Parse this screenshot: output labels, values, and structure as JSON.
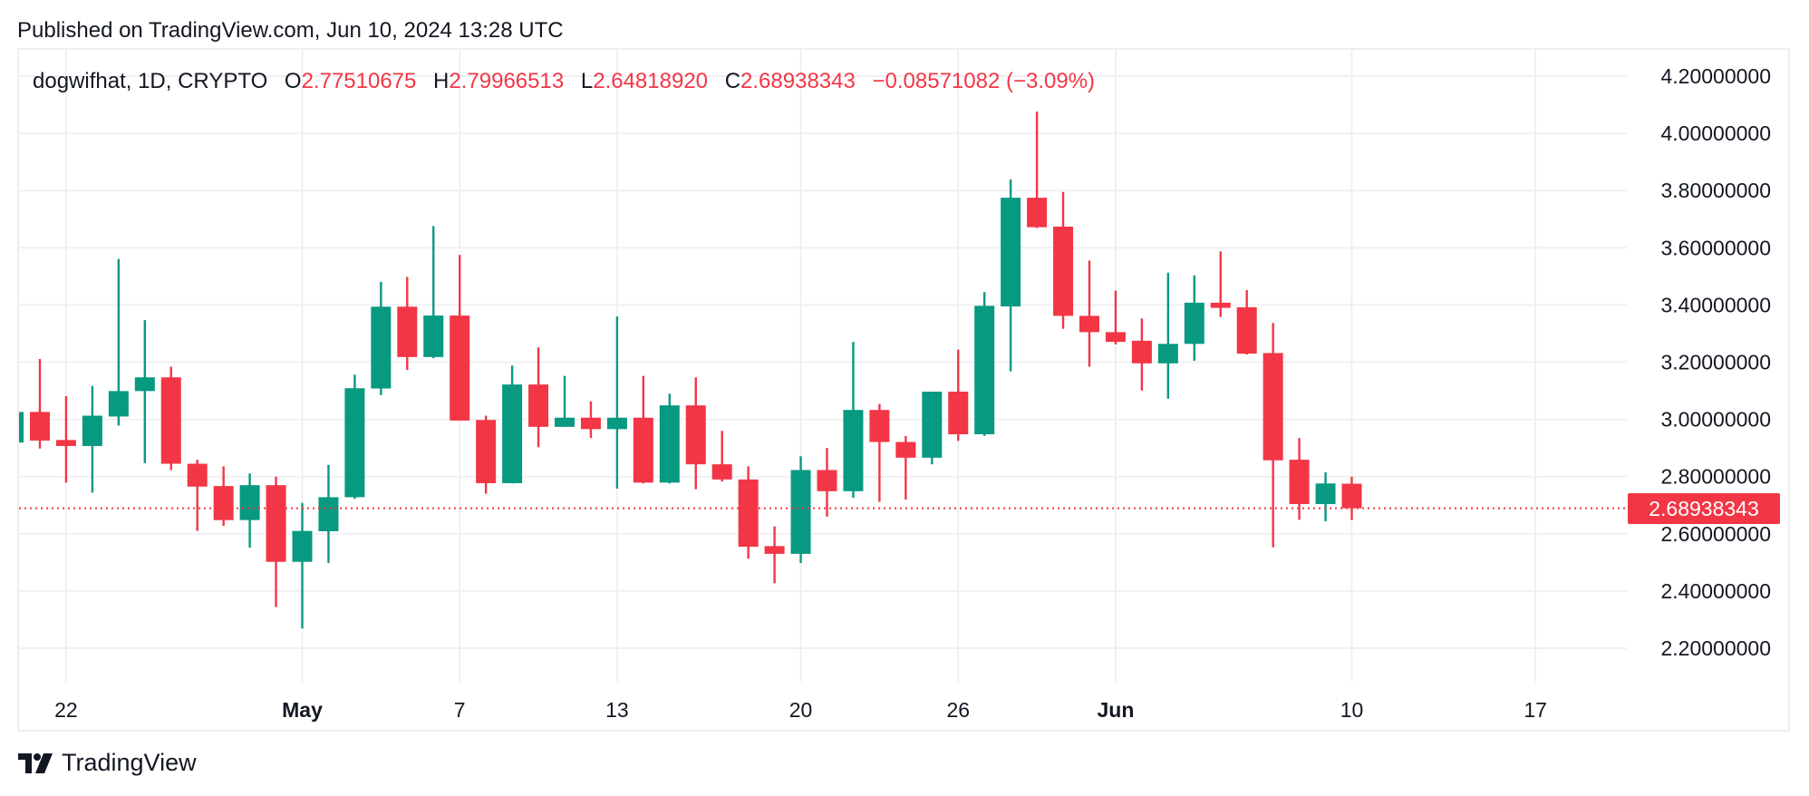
{
  "header": {
    "published": "Published on TradingView.com, Jun 10, 2024 13:28 UTC"
  },
  "legend": {
    "symbol": "dogwifhat, 1D, CRYPTO",
    "open_label": "O",
    "open": "2.77510675",
    "high_label": "H",
    "high": "2.79966513",
    "low_label": "L",
    "low": "2.64818920",
    "close_label": "C",
    "close": "2.68938343",
    "change": "−0.08571082 (−3.09%)"
  },
  "footer": {
    "brand": "TradingView",
    "logo_icon": "tradingview-logo-icon"
  },
  "colors": {
    "up": "#089981",
    "down": "#F23645",
    "grid": "#f0f0f3",
    "text": "#131722"
  },
  "chart_data": {
    "type": "candlestick",
    "interval": "1D",
    "last_price": 2.68938343,
    "last_price_label": "2.68938343",
    "ylim": [
      2.1,
      4.3
    ],
    "grid": true,
    "y_ticks": [
      {
        "value": 4.2,
        "label": "4.20000000"
      },
      {
        "value": 4.0,
        "label": "4.00000000"
      },
      {
        "value": 3.8,
        "label": "3.80000000"
      },
      {
        "value": 3.6,
        "label": "3.60000000"
      },
      {
        "value": 3.4,
        "label": "3.40000000"
      },
      {
        "value": 3.2,
        "label": "3.20000000"
      },
      {
        "value": 3.0,
        "label": "3.00000000"
      },
      {
        "value": 2.8,
        "label": "2.80000000"
      },
      {
        "value": 2.6,
        "label": "2.60000000"
      },
      {
        "value": 2.4,
        "label": "2.40000000"
      },
      {
        "value": 2.2,
        "label": "2.20000000"
      }
    ],
    "x_ticks": [
      {
        "date": "2024-04-22",
        "label": "22",
        "bold": false
      },
      {
        "date": "2024-05-01",
        "label": "May",
        "bold": true
      },
      {
        "date": "2024-05-07",
        "label": "7",
        "bold": false
      },
      {
        "date": "2024-05-13",
        "label": "13",
        "bold": false
      },
      {
        "date": "2024-05-20",
        "label": "20",
        "bold": false
      },
      {
        "date": "2024-05-26",
        "label": "26",
        "bold": false
      },
      {
        "date": "2024-06-01",
        "label": "Jun",
        "bold": true
      },
      {
        "date": "2024-06-10",
        "label": "10",
        "bold": false
      },
      {
        "date": "2024-06-17",
        "label": "17",
        "bold": false
      }
    ],
    "candles": [
      {
        "date": "2024-04-20",
        "o": 2.919,
        "h": 3.026,
        "l": 2.919,
        "c": 3.026
      },
      {
        "date": "2024-04-21",
        "o": 3.026,
        "h": 3.211,
        "l": 2.898,
        "c": 2.926
      },
      {
        "date": "2024-04-22",
        "o": 2.928,
        "h": 3.081,
        "l": 2.779,
        "c": 2.907
      },
      {
        "date": "2024-04-23",
        "o": 2.907,
        "h": 3.117,
        "l": 2.744,
        "c": 3.013
      },
      {
        "date": "2024-04-24",
        "o": 3.01,
        "h": 3.561,
        "l": 2.978,
        "c": 3.099
      },
      {
        "date": "2024-04-25",
        "o": 3.099,
        "h": 3.347,
        "l": 2.847,
        "c": 3.147
      },
      {
        "date": "2024-04-26",
        "o": 3.147,
        "h": 3.184,
        "l": 2.823,
        "c": 2.845
      },
      {
        "date": "2024-04-27",
        "o": 2.845,
        "h": 2.859,
        "l": 2.61,
        "c": 2.765
      },
      {
        "date": "2024-04-28",
        "o": 2.767,
        "h": 2.836,
        "l": 2.628,
        "c": 2.648
      },
      {
        "date": "2024-04-29",
        "o": 2.648,
        "h": 2.811,
        "l": 2.552,
        "c": 2.77
      },
      {
        "date": "2024-04-30",
        "o": 2.77,
        "h": 2.8,
        "l": 2.344,
        "c": 2.502
      },
      {
        "date": "2024-05-01",
        "o": 2.502,
        "h": 2.708,
        "l": 2.269,
        "c": 2.61
      },
      {
        "date": "2024-05-02",
        "o": 2.609,
        "h": 2.841,
        "l": 2.498,
        "c": 2.728
      },
      {
        "date": "2024-05-03",
        "o": 2.728,
        "h": 3.156,
        "l": 2.722,
        "c": 3.109
      },
      {
        "date": "2024-05-04",
        "o": 3.108,
        "h": 3.481,
        "l": 3.085,
        "c": 3.394
      },
      {
        "date": "2024-05-05",
        "o": 3.394,
        "h": 3.498,
        "l": 3.173,
        "c": 3.218
      },
      {
        "date": "2024-05-06",
        "o": 3.218,
        "h": 3.676,
        "l": 3.214,
        "c": 3.363
      },
      {
        "date": "2024-05-07",
        "o": 3.363,
        "h": 3.575,
        "l": 2.996,
        "c": 2.996
      },
      {
        "date": "2024-05-08",
        "o": 2.998,
        "h": 3.013,
        "l": 2.74,
        "c": 2.777
      },
      {
        "date": "2024-05-09",
        "o": 2.777,
        "h": 3.188,
        "l": 2.776,
        "c": 3.122
      },
      {
        "date": "2024-05-10",
        "o": 3.122,
        "h": 3.252,
        "l": 2.903,
        "c": 2.974
      },
      {
        "date": "2024-05-11",
        "o": 2.974,
        "h": 3.152,
        "l": 2.974,
        "c": 3.006
      },
      {
        "date": "2024-05-12",
        "o": 3.006,
        "h": 3.063,
        "l": 2.935,
        "c": 2.966
      },
      {
        "date": "2024-05-13",
        "o": 2.966,
        "h": 3.36,
        "l": 2.758,
        "c": 3.006
      },
      {
        "date": "2024-05-14",
        "o": 3.006,
        "h": 3.152,
        "l": 2.776,
        "c": 2.779
      },
      {
        "date": "2024-05-15",
        "o": 2.779,
        "h": 3.09,
        "l": 2.776,
        "c": 3.049
      },
      {
        "date": "2024-05-16",
        "o": 3.049,
        "h": 3.147,
        "l": 2.756,
        "c": 2.843
      },
      {
        "date": "2024-05-17",
        "o": 2.843,
        "h": 2.96,
        "l": 2.783,
        "c": 2.79
      },
      {
        "date": "2024-05-18",
        "o": 2.79,
        "h": 2.836,
        "l": 2.513,
        "c": 2.555
      },
      {
        "date": "2024-05-19",
        "o": 2.557,
        "h": 2.626,
        "l": 2.427,
        "c": 2.53
      },
      {
        "date": "2024-05-20",
        "o": 2.53,
        "h": 2.871,
        "l": 2.498,
        "c": 2.823
      },
      {
        "date": "2024-05-21",
        "o": 2.823,
        "h": 2.9,
        "l": 2.66,
        "c": 2.749
      },
      {
        "date": "2024-05-22",
        "o": 2.749,
        "h": 3.271,
        "l": 2.726,
        "c": 3.033
      },
      {
        "date": "2024-05-23",
        "o": 3.033,
        "h": 3.054,
        "l": 2.712,
        "c": 2.921
      },
      {
        "date": "2024-05-24",
        "o": 2.921,
        "h": 2.942,
        "l": 2.72,
        "c": 2.866
      },
      {
        "date": "2024-05-25",
        "o": 2.866,
        "h": 3.097,
        "l": 2.843,
        "c": 3.097
      },
      {
        "date": "2024-05-26",
        "o": 3.097,
        "h": 3.244,
        "l": 2.925,
        "c": 2.948
      },
      {
        "date": "2024-05-27",
        "o": 2.948,
        "h": 3.445,
        "l": 2.942,
        "c": 3.397
      },
      {
        "date": "2024-05-28",
        "o": 3.395,
        "h": 3.839,
        "l": 3.168,
        "c": 3.775
      },
      {
        "date": "2024-05-29",
        "o": 3.775,
        "h": 4.076,
        "l": 3.669,
        "c": 3.672
      },
      {
        "date": "2024-05-30",
        "o": 3.674,
        "h": 3.795,
        "l": 3.317,
        "c": 3.362
      },
      {
        "date": "2024-05-31",
        "o": 3.362,
        "h": 3.555,
        "l": 3.184,
        "c": 3.305
      },
      {
        "date": "2024-06-01",
        "o": 3.305,
        "h": 3.45,
        "l": 3.262,
        "c": 3.271
      },
      {
        "date": "2024-06-02",
        "o": 3.275,
        "h": 3.353,
        "l": 3.101,
        "c": 3.196
      },
      {
        "date": "2024-06-03",
        "o": 3.196,
        "h": 3.513,
        "l": 3.072,
        "c": 3.264
      },
      {
        "date": "2024-06-04",
        "o": 3.264,
        "h": 3.504,
        "l": 3.205,
        "c": 3.408
      },
      {
        "date": "2024-06-05",
        "o": 3.408,
        "h": 3.587,
        "l": 3.358,
        "c": 3.39
      },
      {
        "date": "2024-06-06",
        "o": 3.392,
        "h": 3.452,
        "l": 3.227,
        "c": 3.23
      },
      {
        "date": "2024-06-07",
        "o": 3.232,
        "h": 3.337,
        "l": 2.553,
        "c": 2.857
      },
      {
        "date": "2024-06-08",
        "o": 2.859,
        "h": 2.935,
        "l": 2.649,
        "c": 2.704
      },
      {
        "date": "2024-06-09",
        "o": 2.704,
        "h": 2.815,
        "l": 2.644,
        "c": 2.776
      },
      {
        "date": "2024-06-10",
        "o": 2.77510675,
        "h": 2.79966513,
        "l": 2.6481892,
        "c": 2.68938343
      }
    ]
  }
}
